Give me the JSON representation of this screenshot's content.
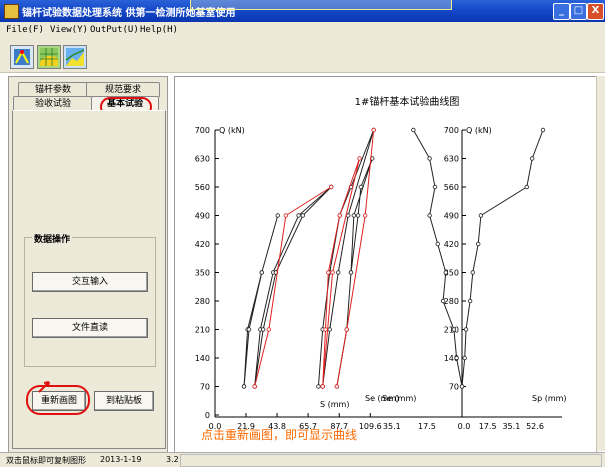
{
  "window": {
    "title": "锚杆试验数据处理系统    供第一检测所她基室使用",
    "buttons": [
      "_",
      "□",
      "X"
    ]
  },
  "menu": [
    "File(F)",
    "View(Y)",
    "OutPut(U)",
    "Help(H)"
  ],
  "toolbar": {
    "icons": [
      "anchor-tool-icon",
      "grid-chart-icon",
      "area-chart-icon"
    ]
  },
  "tabs": {
    "row1": [
      "锚杆参数",
      "规范要求"
    ],
    "row2": [
      "验收试验",
      "基本试验"
    ]
  },
  "group": {
    "label": "数据操作",
    "interactive_input": "交互输入",
    "file_read": "文件直读"
  },
  "buttons": {
    "redraw": "重新画图",
    "paste": "到粘贴板"
  },
  "annotation": "点击重新画图，即可显示曲线",
  "status": {
    "hint": "双击鼠标即可复制图形",
    "date": "2013-1-19",
    "extra": "3.2"
  },
  "colors": {
    "black_series": "#222222",
    "red_series": "#e02020",
    "annotation": "#ff6a00",
    "highlight": "#e01010"
  },
  "chart_data": {
    "type": "line",
    "title": "1#锚杆基本试验曲线图",
    "left_panel": {
      "ylabel": "Q (kN)",
      "x_label_s": "S (mm)",
      "x_label_se": "Se (mm)",
      "yticks": [
        0,
        70,
        140,
        210,
        280,
        350,
        420,
        490,
        560,
        630,
        700
      ],
      "xticks": [
        "0.0",
        "21.9",
        "43.8",
        "65.7",
        "87.7",
        "109.6"
      ],
      "xlim": [
        0,
        120
      ],
      "ylim": [
        0,
        700
      ],
      "series": [
        {
          "color": "black",
          "points": [
            [
              20.5,
              70
            ],
            [
              23,
              210
            ],
            [
              33,
              350
            ],
            [
              44.3,
              490
            ],
            [
              33,
              350
            ],
            [
              24,
              210
            ],
            [
              20.5,
              70
            ]
          ]
        },
        {
          "color": "black",
          "points": [
            [
              28,
              70
            ],
            [
              32,
              210
            ],
            [
              41,
              350
            ],
            [
              59,
              490
            ],
            [
              82,
              560
            ],
            [
              62,
              490
            ],
            [
              43,
              350
            ],
            [
              34,
              210
            ],
            [
              28,
              70
            ]
          ]
        },
        {
          "color": "red",
          "points": [
            [
              28,
              70
            ],
            [
              38,
              210
            ],
            [
              50,
              490
            ],
            [
              82,
              560
            ]
          ]
        },
        {
          "color": "black",
          "points": [
            [
              73,
              70
            ],
            [
              76,
              210
            ],
            [
              81,
              350
            ],
            [
              88,
              490
            ],
            [
              96,
              560
            ],
            [
              112,
              700
            ],
            [
              94,
              490
            ],
            [
              87,
              350
            ],
            [
              81,
              210
            ],
            [
              76,
              70
            ]
          ]
        },
        {
          "color": "red",
          "points": [
            [
              76,
              70
            ],
            [
              83,
              350
            ],
            [
              102,
              630
            ],
            [
              88,
              490
            ],
            [
              80,
              350
            ],
            [
              78,
              210
            ],
            [
              76,
              70
            ]
          ]
        },
        {
          "color": "black",
          "points": [
            [
              86,
              70
            ],
            [
              93,
              210
            ],
            [
              96,
              350
            ],
            [
              101,
              490
            ],
            [
              103,
              560
            ],
            [
              111,
              630
            ],
            [
              98,
              490
            ],
            [
              96,
              350
            ]
          ]
        },
        {
          "color": "red",
          "points": [
            [
              86,
              70
            ],
            [
              93,
              210
            ],
            [
              106,
              490
            ],
            [
              112,
              700
            ]
          ]
        }
      ]
    },
    "right_panel": {
      "ylabel": "Q (kN)",
      "x_label_se": "Se (mm)",
      "x_label_sp": "Sp (mm)",
      "yticks": [
        70,
        140,
        210,
        280,
        350,
        420,
        490,
        560,
        630,
        700
      ],
      "xticks_left": [
        "35.1",
        "17.5"
      ],
      "xticks_right": [
        "0.0",
        "17.5",
        "35.1",
        "52.6"
      ],
      "series": [
        {
          "color": "black",
          "name": "Se",
          "points": [
            [
              -36,
              700
            ],
            [
              -24,
              630
            ],
            [
              -20,
              560
            ],
            [
              -24,
              490
            ],
            [
              -18,
              420
            ],
            [
              -12,
              350
            ],
            [
              -14,
              280
            ],
            [
              -6,
              210
            ],
            [
              -4,
              140
            ],
            [
              0,
              70
            ]
          ]
        },
        {
          "color": "black",
          "name": "Sp",
          "points": [
            [
              0,
              70
            ],
            [
              2,
              140
            ],
            [
              3,
              210
            ],
            [
              6,
              280
            ],
            [
              8,
              350
            ],
            [
              12,
              420
            ],
            [
              14,
              490
            ],
            [
              48,
              560
            ],
            [
              52,
              630
            ],
            [
              60,
              700
            ]
          ]
        }
      ]
    }
  }
}
